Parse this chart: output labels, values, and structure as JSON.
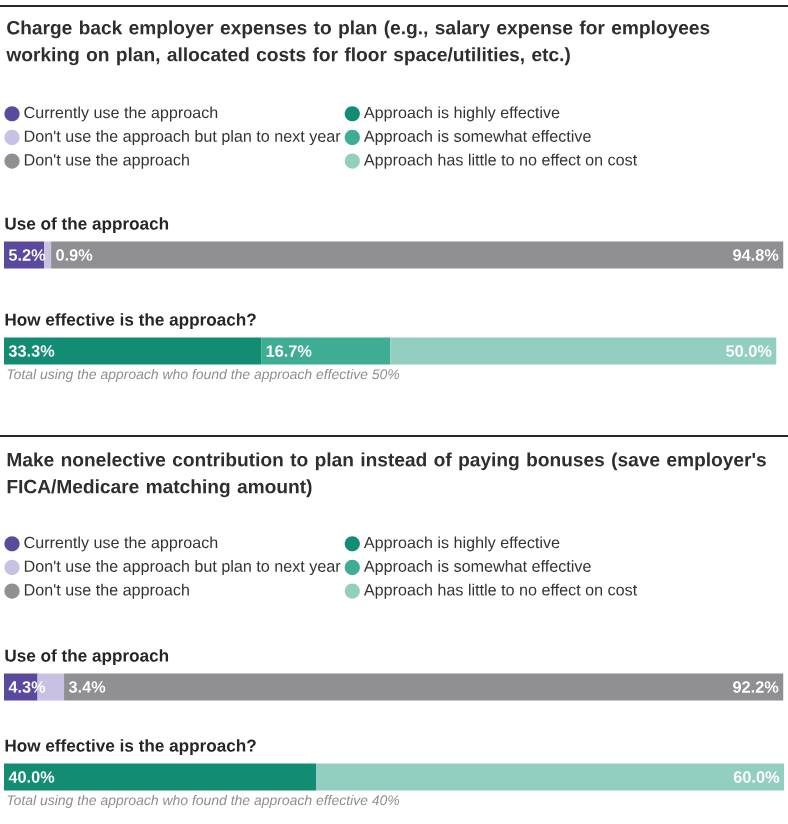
{
  "chart_data": [
    {
      "type": "bar",
      "orientation": "horizontal",
      "stacked": true,
      "legend": "top",
      "title": "Charge back employer expenses to plan (e.g., salary expense for employees working on plan, allocated costs for floor space/utilities, etc.)",
      "categories": [
        "Use of the approach",
        "How effective is the approach?"
      ],
      "xlim": [
        0,
        101
      ],
      "annotations": [
        "Total using the approach who found the approach effective 50%"
      ],
      "series": [
        {
          "name": "Currently use the approach",
          "color": "#5a4a9e",
          "values": [
            5.2,
            null
          ],
          "value_labels": [
            "5.2%",
            null
          ]
        },
        {
          "name": "Don't use the approach but plan to next year",
          "color": "#c9c1e3",
          "values": [
            0.9,
            null
          ],
          "value_labels": [
            "0.9%",
            null
          ]
        },
        {
          "name": "Don't use the approach",
          "color": "#8f8f94",
          "values": [
            94.8,
            null
          ],
          "value_labels": [
            "94.8%",
            null
          ]
        },
        {
          "name": "Approach is highly effective",
          "color": "#128c72",
          "values": [
            null,
            33.3
          ],
          "value_labels": [
            null,
            "33.3%"
          ]
        },
        {
          "name": "Approach is somewhat effective",
          "color": "#3fad94",
          "values": [
            null,
            16.7
          ],
          "value_labels": [
            null,
            "16.7%"
          ]
        },
        {
          "name": "Approach has little to no effect on cost",
          "color": "#93cfc0",
          "values": [
            null,
            50.0
          ],
          "value_labels": [
            null,
            "50.0%"
          ]
        }
      ]
    },
    {
      "type": "bar",
      "orientation": "horizontal",
      "stacked": true,
      "legend": "top",
      "title": "Make nonelective contribution to plan instead of paying bonuses (save employer's FICA/Medicare matching amount)",
      "categories": [
        "Use of the approach",
        "How effective is the approach?"
      ],
      "xlim": [
        0,
        100
      ],
      "annotations": [
        "Total using the approach who found the approach effective 40%"
      ],
      "series": [
        {
          "name": "Currently use the approach",
          "color": "#5a4a9e",
          "values": [
            4.3,
            null
          ],
          "value_labels": [
            "4.3%",
            null
          ]
        },
        {
          "name": "Don't use the approach but plan to next year",
          "color": "#c9c1e3",
          "values": [
            3.4,
            null
          ],
          "value_labels": [
            "3.4%",
            null
          ]
        },
        {
          "name": "Don't use the approach",
          "color": "#8f8f94",
          "values": [
            92.2,
            null
          ],
          "value_labels": [
            "92.2%",
            null
          ]
        },
        {
          "name": "Approach is highly effective",
          "color": "#128c72",
          "values": [
            null,
            40.0
          ],
          "value_labels": [
            null,
            "40.0%"
          ]
        },
        {
          "name": "Approach is somewhat effective",
          "color": "#3fad94",
          "values": [
            null,
            null
          ],
          "value_labels": [
            null,
            null
          ]
        },
        {
          "name": "Approach has little to no effect on cost",
          "color": "#93cfc0",
          "values": [
            null,
            60.0
          ],
          "value_labels": [
            null,
            "60.0%"
          ]
        }
      ]
    }
  ]
}
